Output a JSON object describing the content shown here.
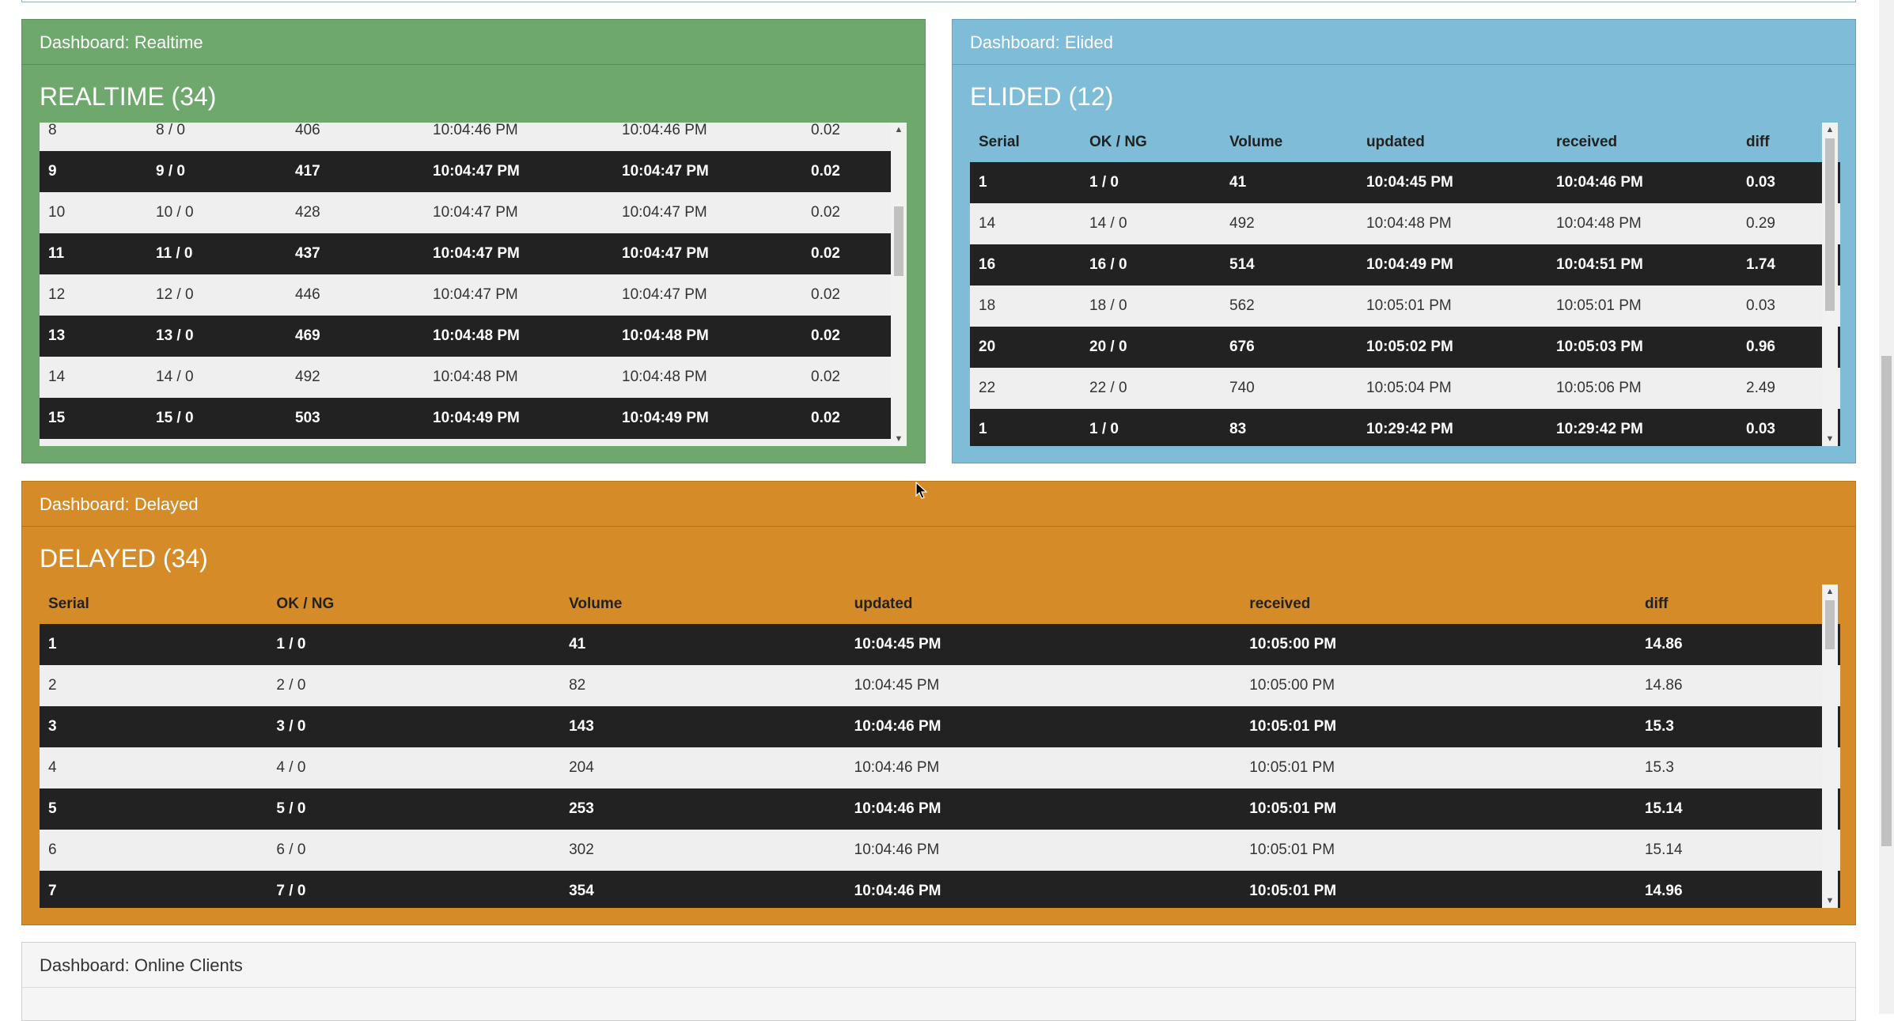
{
  "realtime": {
    "header": "Dashboard: Realtime",
    "title": "REALTIME (34)",
    "rows": [
      [
        "8",
        "8 / 0",
        "406",
        "10:04:46 PM",
        "10:04:46 PM",
        "0.02"
      ],
      [
        "9",
        "9 / 0",
        "417",
        "10:04:47 PM",
        "10:04:47 PM",
        "0.02"
      ],
      [
        "10",
        "10 / 0",
        "428",
        "10:04:47 PM",
        "10:04:47 PM",
        "0.02"
      ],
      [
        "11",
        "11 / 0",
        "437",
        "10:04:47 PM",
        "10:04:47 PM",
        "0.02"
      ],
      [
        "12",
        "12 / 0",
        "446",
        "10:04:47 PM",
        "10:04:47 PM",
        "0.02"
      ],
      [
        "13",
        "13 / 0",
        "469",
        "10:04:48 PM",
        "10:04:48 PM",
        "0.02"
      ],
      [
        "14",
        "14 / 0",
        "492",
        "10:04:48 PM",
        "10:04:48 PM",
        "0.02"
      ],
      [
        "15",
        "15 / 0",
        "503",
        "10:04:49 PM",
        "10:04:49 PM",
        "0.02"
      ]
    ]
  },
  "elided": {
    "header": "Dashboard: Elided",
    "title": "ELIDED (12)",
    "columns": [
      "Serial",
      "OK / NG",
      "Volume",
      "updated",
      "received",
      "diff"
    ],
    "rows": [
      [
        "1",
        "1 / 0",
        "41",
        "10:04:45 PM",
        "10:04:46 PM",
        "0.03"
      ],
      [
        "14",
        "14 / 0",
        "492",
        "10:04:48 PM",
        "10:04:48 PM",
        "0.29"
      ],
      [
        "16",
        "16 / 0",
        "514",
        "10:04:49 PM",
        "10:04:51 PM",
        "1.74"
      ],
      [
        "18",
        "18 / 0",
        "562",
        "10:05:01 PM",
        "10:05:01 PM",
        "0.03"
      ],
      [
        "20",
        "20 / 0",
        "676",
        "10:05:02 PM",
        "10:05:03 PM",
        "0.96"
      ],
      [
        "22",
        "22 / 0",
        "740",
        "10:05:04 PM",
        "10:05:06 PM",
        "2.49"
      ],
      [
        "1",
        "1 / 0",
        "83",
        "10:29:42 PM",
        "10:29:42 PM",
        "0.03"
      ]
    ]
  },
  "delayed": {
    "header": "Dashboard: Delayed",
    "title": "DELAYED (34)",
    "columns": [
      "Serial",
      "OK / NG",
      "Volume",
      "updated",
      "received",
      "diff"
    ],
    "rows": [
      [
        "1",
        "1 / 0",
        "41",
        "10:04:45 PM",
        "10:05:00 PM",
        "14.86"
      ],
      [
        "2",
        "2 / 0",
        "82",
        "10:04:45 PM",
        "10:05:00 PM",
        "14.86"
      ],
      [
        "3",
        "3 / 0",
        "143",
        "10:04:46 PM",
        "10:05:01 PM",
        "15.3"
      ],
      [
        "4",
        "4 / 0",
        "204",
        "10:04:46 PM",
        "10:05:01 PM",
        "15.3"
      ],
      [
        "5",
        "5 / 0",
        "253",
        "10:04:46 PM",
        "10:05:01 PM",
        "15.14"
      ],
      [
        "6",
        "6 / 0",
        "302",
        "10:04:46 PM",
        "10:05:01 PM",
        "15.14"
      ],
      [
        "7",
        "7 / 0",
        "354",
        "10:04:46 PM",
        "10:05:01 PM",
        "14.96"
      ]
    ]
  },
  "online": {
    "header": "Dashboard: Online Clients"
  },
  "colors": {
    "realtime": "#6fa86c",
    "elided": "#7fbcd8",
    "delayed": "#d58b28",
    "online": "#f5f5f5",
    "row_dark": "#222222",
    "row_light": "#efefef"
  },
  "icons": {
    "scroll_up": "▲",
    "scroll_down": "▼"
  }
}
